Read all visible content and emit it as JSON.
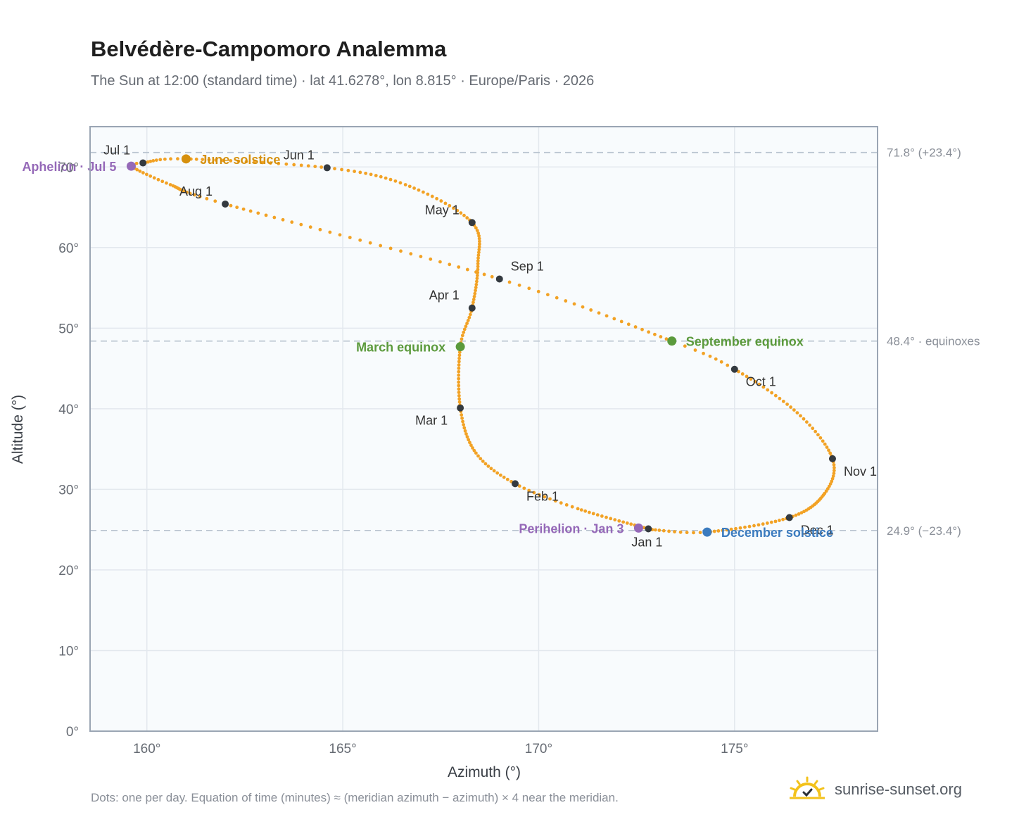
{
  "header": {
    "title": "Belvédère-Campomoro Analemma",
    "subtitle": "The Sun at 12:00 (standard time) · lat 41.6278°, lon 8.815° · Europe/Paris · 2026"
  },
  "footer": {
    "note": "Dots: one per day. Equation of time (minutes) ≈ (meridian azimuth − azimuth) × 4 near the meridian.",
    "brand": "sunrise-sunset.org"
  },
  "colors": {
    "curve": "#f2a225",
    "month_marker": "#343a40",
    "june_solstice": "#d6900e",
    "december_solstice": "#3b7bbf",
    "equinox": "#5b9a3c",
    "apsis": "#9569b8",
    "plot_bg": "#f8fbfd",
    "grid": "#e3e8ee",
    "frame": "#9aa5b3",
    "ref_line": "#b8c3cf"
  },
  "chart_data": {
    "type": "scatter",
    "title": "Belvédère-Campomoro Analemma",
    "xlabel": "Azimuth (°)",
    "ylabel": "Altitude (°)",
    "xlim": [
      158.55,
      178.65
    ],
    "ylim": [
      0,
      75
    ],
    "xticks": [
      160,
      165,
      170,
      175
    ],
    "xtick_labels": [
      "160°",
      "165°",
      "170°",
      "175°"
    ],
    "yticks": [
      0,
      10,
      20,
      30,
      40,
      50,
      60,
      70
    ],
    "ytick_labels": [
      "0°",
      "10°",
      "20°",
      "30°",
      "40°",
      "50°",
      "60°",
      "70°"
    ],
    "grid": true,
    "reference_lines": [
      {
        "y": 71.8,
        "label": "71.8° (+23.4°)"
      },
      {
        "y": 48.4,
        "label": "48.4° · equinoxes"
      },
      {
        "y": 24.9,
        "label": "24.9° (−23.4°)"
      }
    ],
    "curve_points": [
      {
        "day": 1,
        "az": 172.8,
        "alt": 25.1
      },
      {
        "day": 20,
        "az": 171.0,
        "alt": 27.6
      },
      {
        "day": 32,
        "az": 169.4,
        "alt": 30.7
      },
      {
        "day": 45,
        "az": 168.4,
        "alt": 34.5
      },
      {
        "day": 60,
        "az": 168.0,
        "alt": 40.1
      },
      {
        "day": 79,
        "az": 168.0,
        "alt": 47.7
      },
      {
        "day": 91,
        "az": 168.3,
        "alt": 52.5
      },
      {
        "day": 106,
        "az": 168.45,
        "alt": 58.0
      },
      {
        "day": 121,
        "az": 168.3,
        "alt": 63.1
      },
      {
        "day": 138,
        "az": 166.6,
        "alt": 67.8
      },
      {
        "day": 152,
        "az": 164.6,
        "alt": 69.9
      },
      {
        "day": 172,
        "az": 161.0,
        "alt": 71.0
      },
      {
        "day": 182,
        "az": 159.9,
        "alt": 70.5
      },
      {
        "day": 186,
        "az": 159.6,
        "alt": 70.1
      },
      {
        "day": 198,
        "az": 160.6,
        "alt": 67.8
      },
      {
        "day": 213,
        "az": 162.0,
        "alt": 65.4
      },
      {
        "day": 244,
        "az": 169.0,
        "alt": 56.1
      },
      {
        "day": 266,
        "az": 173.4,
        "alt": 48.4
      },
      {
        "day": 274,
        "az": 175.0,
        "alt": 44.9
      },
      {
        "day": 290,
        "az": 176.6,
        "alt": 39.5
      },
      {
        "day": 305,
        "az": 177.5,
        "alt": 33.8
      },
      {
        "day": 318,
        "az": 177.3,
        "alt": 29.5
      },
      {
        "day": 335,
        "az": 176.4,
        "alt": 26.5
      },
      {
        "day": 355,
        "az": 174.3,
        "alt": 24.7
      },
      {
        "day": 365,
        "az": 172.9,
        "alt": 25.0
      }
    ],
    "month_markers": [
      {
        "label": "Jan 1",
        "az": 172.8,
        "alt": 25.1,
        "anchor": "below"
      },
      {
        "label": "Feb 1",
        "az": 169.4,
        "alt": 30.7,
        "anchor": "below-right"
      },
      {
        "label": "Mar 1",
        "az": 168.0,
        "alt": 40.1,
        "anchor": "below-left"
      },
      {
        "label": "Apr 1",
        "az": 168.3,
        "alt": 52.5,
        "anchor": "above-left"
      },
      {
        "label": "May 1",
        "az": 168.3,
        "alt": 63.1,
        "anchor": "above-left"
      },
      {
        "label": "Jun 1",
        "az": 164.6,
        "alt": 69.9,
        "anchor": "above-left"
      },
      {
        "label": "Jul 1",
        "az": 159.9,
        "alt": 70.5,
        "anchor": "above-left"
      },
      {
        "label": "Aug 1",
        "az": 162.0,
        "alt": 65.4,
        "anchor": "above-left"
      },
      {
        "label": "Sep 1",
        "az": 169.0,
        "alt": 56.1,
        "anchor": "above-right"
      },
      {
        "label": "Oct 1",
        "az": 175.0,
        "alt": 44.9,
        "anchor": "below-right"
      },
      {
        "label": "Nov 1",
        "az": 177.5,
        "alt": 33.8,
        "anchor": "below-right"
      },
      {
        "label": "Dec 1",
        "az": 176.4,
        "alt": 26.5,
        "anchor": "below-right"
      }
    ],
    "events": [
      {
        "label": "June solstice",
        "az": 161.0,
        "alt": 71.0,
        "color_key": "june_solstice",
        "side": "right"
      },
      {
        "label": "December solstice",
        "az": 174.3,
        "alt": 24.7,
        "color_key": "december_solstice",
        "side": "right"
      },
      {
        "label": "March equinox",
        "az": 168.0,
        "alt": 47.7,
        "color_key": "equinox",
        "side": "left"
      },
      {
        "label": "September equinox",
        "az": 173.4,
        "alt": 48.4,
        "color_key": "equinox",
        "side": "right"
      },
      {
        "label": "Perihelion · Jan 3",
        "az": 172.55,
        "alt": 25.2,
        "color_key": "apsis",
        "side": "left"
      },
      {
        "label": "Aphelion · Jul 5",
        "az": 159.6,
        "alt": 70.1,
        "color_key": "apsis",
        "side": "left"
      }
    ]
  }
}
